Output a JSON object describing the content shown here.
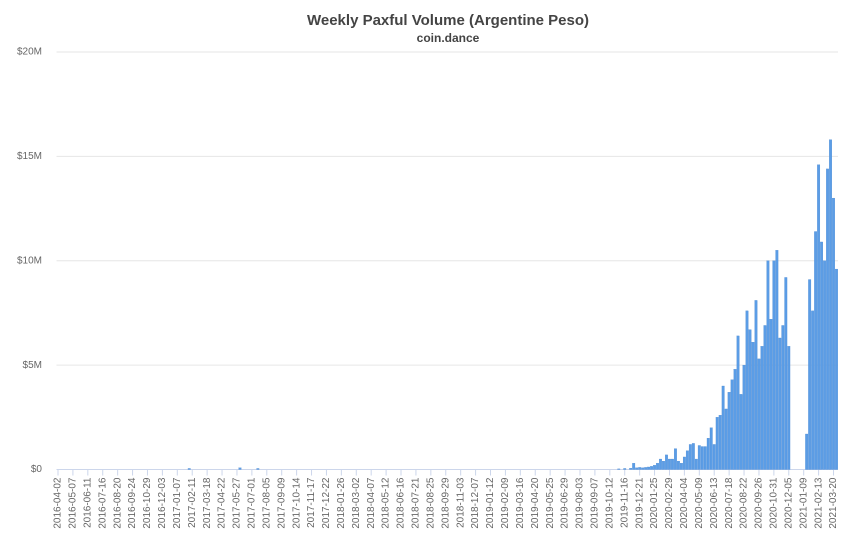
{
  "chart_data": {
    "type": "bar",
    "title": "Weekly Paxful Volume (Argentine Peso)",
    "subtitle": "coin.dance",
    "color": "#5b9de6",
    "grid": true,
    "ylim": [
      0,
      20000000
    ],
    "yticks": [
      {
        "value": 0,
        "label": "$0"
      },
      {
        "value": 5000000,
        "label": "$5M"
      },
      {
        "value": 10000000,
        "label": "$10M"
      },
      {
        "value": 15000000,
        "label": "$15M"
      },
      {
        "value": 20000000,
        "label": "$20M"
      }
    ],
    "categories": [
      "2016-04-02",
      null,
      null,
      null,
      null,
      "2016-05-07",
      null,
      null,
      null,
      null,
      "2016-06-11",
      null,
      null,
      null,
      null,
      "2016-07-16",
      null,
      null,
      null,
      null,
      "2016-08-20",
      null,
      null,
      null,
      null,
      "2016-09-24",
      null,
      null,
      null,
      null,
      "2016-10-29",
      null,
      null,
      null,
      null,
      "2016-12-03",
      null,
      null,
      null,
      null,
      "2017-01-07",
      null,
      null,
      null,
      null,
      "2017-02-11",
      null,
      null,
      null,
      null,
      "2017-03-18",
      null,
      null,
      null,
      null,
      "2017-04-22",
      null,
      null,
      null,
      null,
      "2017-05-27",
      null,
      null,
      null,
      null,
      "2017-07-01",
      null,
      null,
      null,
      null,
      "2017-08-05",
      null,
      null,
      null,
      null,
      "2017-09-09",
      null,
      null,
      null,
      null,
      "2017-10-14",
      null,
      null,
      null,
      null,
      "2017-11-17",
      null,
      null,
      null,
      null,
      "2017-12-22",
      null,
      null,
      null,
      null,
      "2018-01-26",
      null,
      null,
      null,
      null,
      "2018-03-02",
      null,
      null,
      null,
      null,
      "2018-04-07",
      null,
      null,
      null,
      null,
      "2018-05-12",
      null,
      null,
      null,
      null,
      "2018-06-16",
      null,
      null,
      null,
      null,
      "2018-07-21",
      null,
      null,
      null,
      null,
      "2018-08-25",
      null,
      null,
      null,
      null,
      "2018-09-29",
      null,
      null,
      null,
      null,
      "2018-11-03",
      null,
      null,
      null,
      null,
      "2018-12-07",
      null,
      null,
      null,
      null,
      "2019-01-12",
      null,
      null,
      null,
      null,
      "2019-02-09",
      null,
      null,
      null,
      null,
      "2019-03-16",
      null,
      null,
      null,
      null,
      "2019-04-20",
      null,
      null,
      null,
      null,
      "2019-05-25",
      null,
      null,
      null,
      null,
      "2019-06-29",
      null,
      null,
      null,
      null,
      "2019-08-03",
      null,
      null,
      null,
      null,
      "2019-09-07",
      null,
      null,
      null,
      null,
      "2019-10-12",
      null,
      null,
      null,
      null,
      "2019-11-16",
      null,
      null,
      null,
      null,
      "2019-12-21",
      null,
      null,
      null,
      null,
      "2020-01-25",
      null,
      null,
      null,
      null,
      "2020-02-29",
      null,
      null,
      null,
      null,
      "2020-04-04",
      null,
      null,
      null,
      null,
      "2020-05-09",
      null,
      null,
      null,
      null,
      "2020-06-13",
      null,
      null,
      null,
      null,
      "2020-07-18",
      null,
      null,
      null,
      null,
      "2020-08-22",
      null,
      null,
      null,
      null,
      "2020-09-26",
      null,
      null,
      null,
      null,
      "2020-10-31",
      null,
      null,
      null,
      null,
      "2020-12-05",
      null,
      null,
      null,
      null,
      "2021-01-09",
      null,
      null,
      null,
      null,
      "2021-02-13",
      null,
      null,
      null,
      null,
      "2021-03-20",
      null
    ],
    "values": [
      0,
      0,
      0,
      0,
      0,
      0,
      0,
      0,
      0,
      0,
      0,
      0,
      0,
      0,
      0,
      0,
      0,
      0,
      0,
      0,
      0,
      0,
      0,
      0,
      0,
      0,
      0,
      0,
      0,
      0,
      0,
      0,
      0,
      0,
      0,
      0,
      0,
      0,
      0,
      0,
      0,
      0,
      0,
      0,
      50000,
      0,
      0,
      0,
      0,
      0,
      0,
      0,
      0,
      0,
      0,
      0,
      0,
      0,
      0,
      0,
      0,
      80000,
      0,
      0,
      0,
      0,
      0,
      50000,
      0,
      0,
      0,
      0,
      0,
      0,
      0,
      0,
      0,
      0,
      0,
      0,
      0,
      0,
      0,
      0,
      0,
      0,
      0,
      0,
      0,
      0,
      0,
      0,
      0,
      0,
      0,
      0,
      0,
      0,
      0,
      0,
      0,
      0,
      0,
      0,
      0,
      0,
      0,
      0,
      0,
      0,
      0,
      0,
      0,
      0,
      0,
      0,
      0,
      0,
      0,
      0,
      0,
      0,
      0,
      0,
      0,
      0,
      0,
      0,
      0,
      0,
      0,
      0,
      0,
      0,
      0,
      0,
      0,
      0,
      0,
      0,
      0,
      0,
      0,
      0,
      0,
      0,
      0,
      0,
      0,
      0,
      0,
      0,
      0,
      0,
      0,
      0,
      0,
      0,
      0,
      0,
      0,
      0,
      0,
      0,
      0,
      0,
      0,
      0,
      0,
      0,
      0,
      0,
      0,
      0,
      0,
      0,
      0,
      0,
      0,
      0,
      0,
      0,
      0,
      0,
      0,
      0,
      0,
      0,
      30000,
      0,
      50000,
      0,
      60000,
      300000,
      80000,
      100000,
      80000,
      100000,
      120000,
      150000,
      200000,
      300000,
      500000,
      400000,
      700000,
      500000,
      500000,
      1000000,
      400000,
      300000,
      600000,
      900000,
      1200000,
      1250000,
      500000,
      1150000,
      1100000,
      1100000,
      1500000,
      2000000,
      1200000,
      2500000,
      2600000,
      4000000,
      2900000,
      3700000,
      4300000,
      4800000,
      6400000,
      3600000,
      5000000,
      7600000,
      6700000,
      6100000,
      8100000,
      5300000,
      5900000,
      6900000,
      10000000,
      7200000,
      10000000,
      10500000,
      6300000,
      6900000,
      9200000,
      5900000,
      0,
      0,
      0,
      0,
      0,
      1700000,
      9100000,
      7600000,
      11400000,
      14600000,
      10900000,
      10000000,
      14400000,
      15800000,
      13000000,
      9600000
    ]
  }
}
